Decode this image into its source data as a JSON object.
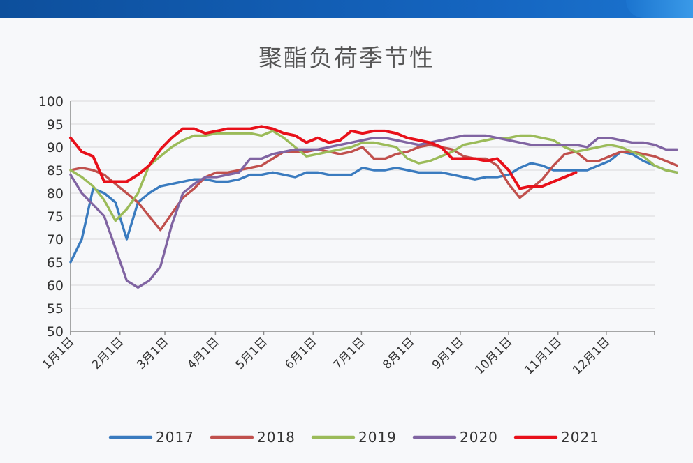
{
  "chart_data": {
    "type": "line",
    "title": "聚酯负荷季节性",
    "xlabel": "",
    "ylabel": "",
    "ylim": [
      50,
      100
    ],
    "yticks": [
      50,
      55,
      60,
      65,
      70,
      75,
      80,
      85,
      90,
      95,
      100
    ],
    "x_ticks": [
      {
        "label": "1月1日",
        "week": 1
      },
      {
        "label": "2月1日",
        "week": 5.4
      },
      {
        "label": "3月1日",
        "week": 9.4
      },
      {
        "label": "4月1日",
        "week": 13.9
      },
      {
        "label": "5月1日",
        "week": 18.2
      },
      {
        "label": "6月1日",
        "week": 22.6
      },
      {
        "label": "7月1日",
        "week": 26.9
      },
      {
        "label": "8月1日",
        "week": 31.3
      },
      {
        "label": "9月1日",
        "week": 35.7
      },
      {
        "label": "10月1日",
        "week": 40.0
      },
      {
        "label": "11月1日",
        "week": 44.4
      },
      {
        "label": "12月1日",
        "week": 48.7
      }
    ],
    "grid": true,
    "legend_position": "bottom",
    "series": [
      {
        "name": "2017",
        "color": "#3a7bbf",
        "values": [
          65,
          70,
          81,
          80,
          78,
          70,
          78,
          80,
          81.5,
          82,
          82.5,
          83,
          83,
          82.5,
          82.5,
          83,
          84,
          84,
          84.5,
          84,
          83.5,
          84.5,
          84.5,
          84,
          84,
          84,
          85.5,
          85,
          85,
          85.5,
          85,
          84.5,
          84.5,
          84.5,
          84,
          83.5,
          83,
          83.5,
          83.5,
          84,
          85.5,
          86.5,
          86,
          85,
          85,
          85,
          85,
          86,
          87,
          89,
          88.5,
          87,
          86,
          85,
          84.5
        ]
      },
      {
        "name": "2018",
        "color": "#c0504d",
        "values": [
          85,
          85.5,
          85,
          84,
          82,
          80,
          78,
          75,
          72,
          75.5,
          79,
          81,
          83.5,
          84.5,
          84.5,
          85,
          85.5,
          86,
          87.5,
          89,
          89,
          89,
          89.5,
          89,
          88.5,
          89,
          90,
          87.5,
          87.5,
          88.5,
          89,
          90,
          90.5,
          90,
          89.5,
          88,
          87.5,
          87.5,
          86,
          82,
          79,
          81,
          83,
          86,
          88.5,
          89,
          87,
          87,
          88,
          89,
          89,
          88.5,
          88,
          87,
          86
        ]
      },
      {
        "name": "2019",
        "color": "#9bbb59",
        "values": [
          85,
          83.5,
          81.5,
          78.5,
          74,
          76.5,
          80,
          86,
          88,
          90,
          91.5,
          92.5,
          92.5,
          93,
          93,
          93,
          93,
          92.5,
          93.5,
          92,
          90,
          88,
          88.5,
          89,
          89.5,
          90,
          91,
          91,
          90.5,
          90,
          87.5,
          86.5,
          87,
          88,
          89,
          90.5,
          91,
          91.5,
          92,
          92,
          92.5,
          92.5,
          92,
          91.5,
          90,
          89,
          89.5,
          90,
          90.5,
          90,
          89,
          88,
          86,
          85,
          84.5
        ]
      },
      {
        "name": "2020",
        "color": "#8064a2",
        "values": [
          84,
          80,
          77.5,
          75,
          68,
          61,
          59.5,
          61,
          64,
          73,
          80,
          82,
          83.5,
          83.5,
          84,
          84.5,
          87.5,
          87.5,
          88.5,
          89,
          89.5,
          89.5,
          89.5,
          90,
          90.5,
          91,
          91.5,
          92,
          92,
          91.5,
          91,
          90.5,
          91,
          91.5,
          92,
          92.5,
          92.5,
          92.5,
          92,
          91.5,
          91,
          90.5,
          90.5,
          90.5,
          90.5,
          90.5,
          90,
          92,
          92,
          91.5,
          91,
          91,
          90.5,
          89.5,
          89.5
        ]
      },
      {
        "name": "2021",
        "color": "#e8101a",
        "values": [
          92,
          89,
          88,
          82.5,
          82.5,
          82.5,
          84,
          86,
          89.5,
          92,
          94,
          94,
          93,
          93.5,
          94,
          94,
          94,
          94.5,
          94,
          93,
          92.5,
          91,
          92,
          91,
          91.5,
          93.5,
          93,
          93.5,
          93.5,
          93,
          92,
          91.5,
          91,
          90,
          87.5,
          87.5,
          87.5,
          87,
          87.5,
          85,
          81,
          81.5,
          81.5,
          82.5,
          83.5,
          84.5
        ]
      }
    ]
  }
}
